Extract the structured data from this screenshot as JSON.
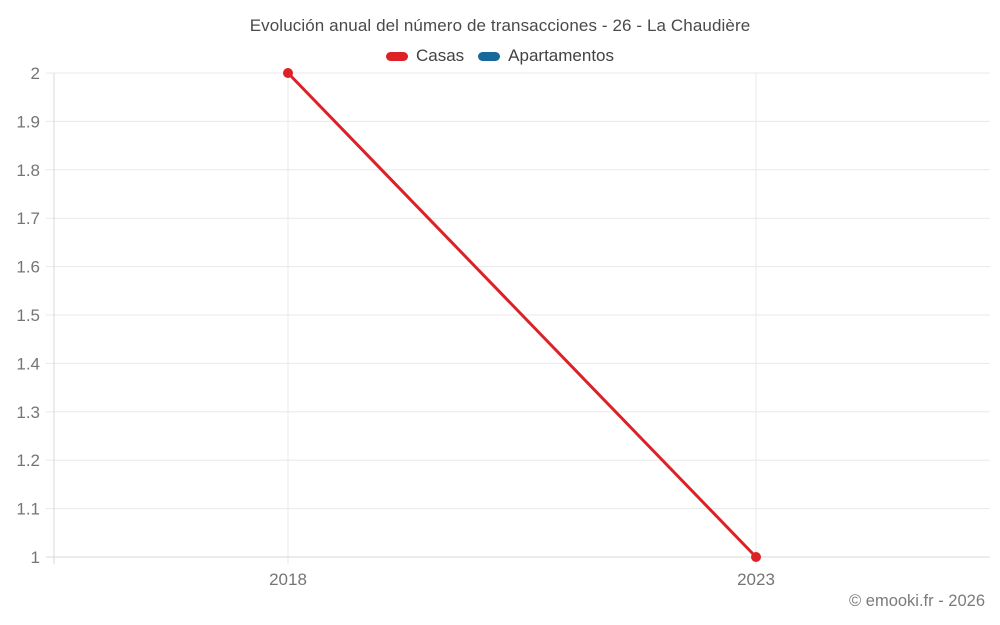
{
  "title": "Evolución anual del número de transacciones - 26 - La Chaudière",
  "legend": {
    "items": [
      {
        "label": "Casas",
        "color": "#dc2127"
      },
      {
        "label": "Apartamentos",
        "color": "#17699c"
      }
    ]
  },
  "footer": {
    "copyright": "© emooki.fr - 2026"
  },
  "colors": {
    "grid": "#e8e8e8",
    "axis": "#d9d9d9",
    "tick_text": "#757575"
  },
  "chart_data": {
    "type": "line",
    "title": "Evolución anual del número de transacciones - 26 - La Chaudière",
    "x": [
      2018,
      2023
    ],
    "x_tick_labels": [
      "2018",
      "2023"
    ],
    "series": [
      {
        "name": "Casas",
        "color": "#dc2127",
        "values": [
          2,
          1
        ]
      },
      {
        "name": "Apartamentos",
        "color": "#17699c",
        "values": []
      }
    ],
    "xlabel": "",
    "ylabel": "",
    "xlim": [
      2015.5,
      2025.5
    ],
    "ylim": [
      1,
      2
    ],
    "y_ticks": [
      1,
      1.1,
      1.2,
      1.3,
      1.4,
      1.5,
      1.6,
      1.7,
      1.8,
      1.9,
      2
    ],
    "y_tick_labels": [
      "1",
      "1.1",
      "1.2",
      "1.3",
      "1.4",
      "1.5",
      "1.6",
      "1.7",
      "1.8",
      "1.9",
      "2"
    ],
    "grid": true,
    "legend_position": "top"
  }
}
